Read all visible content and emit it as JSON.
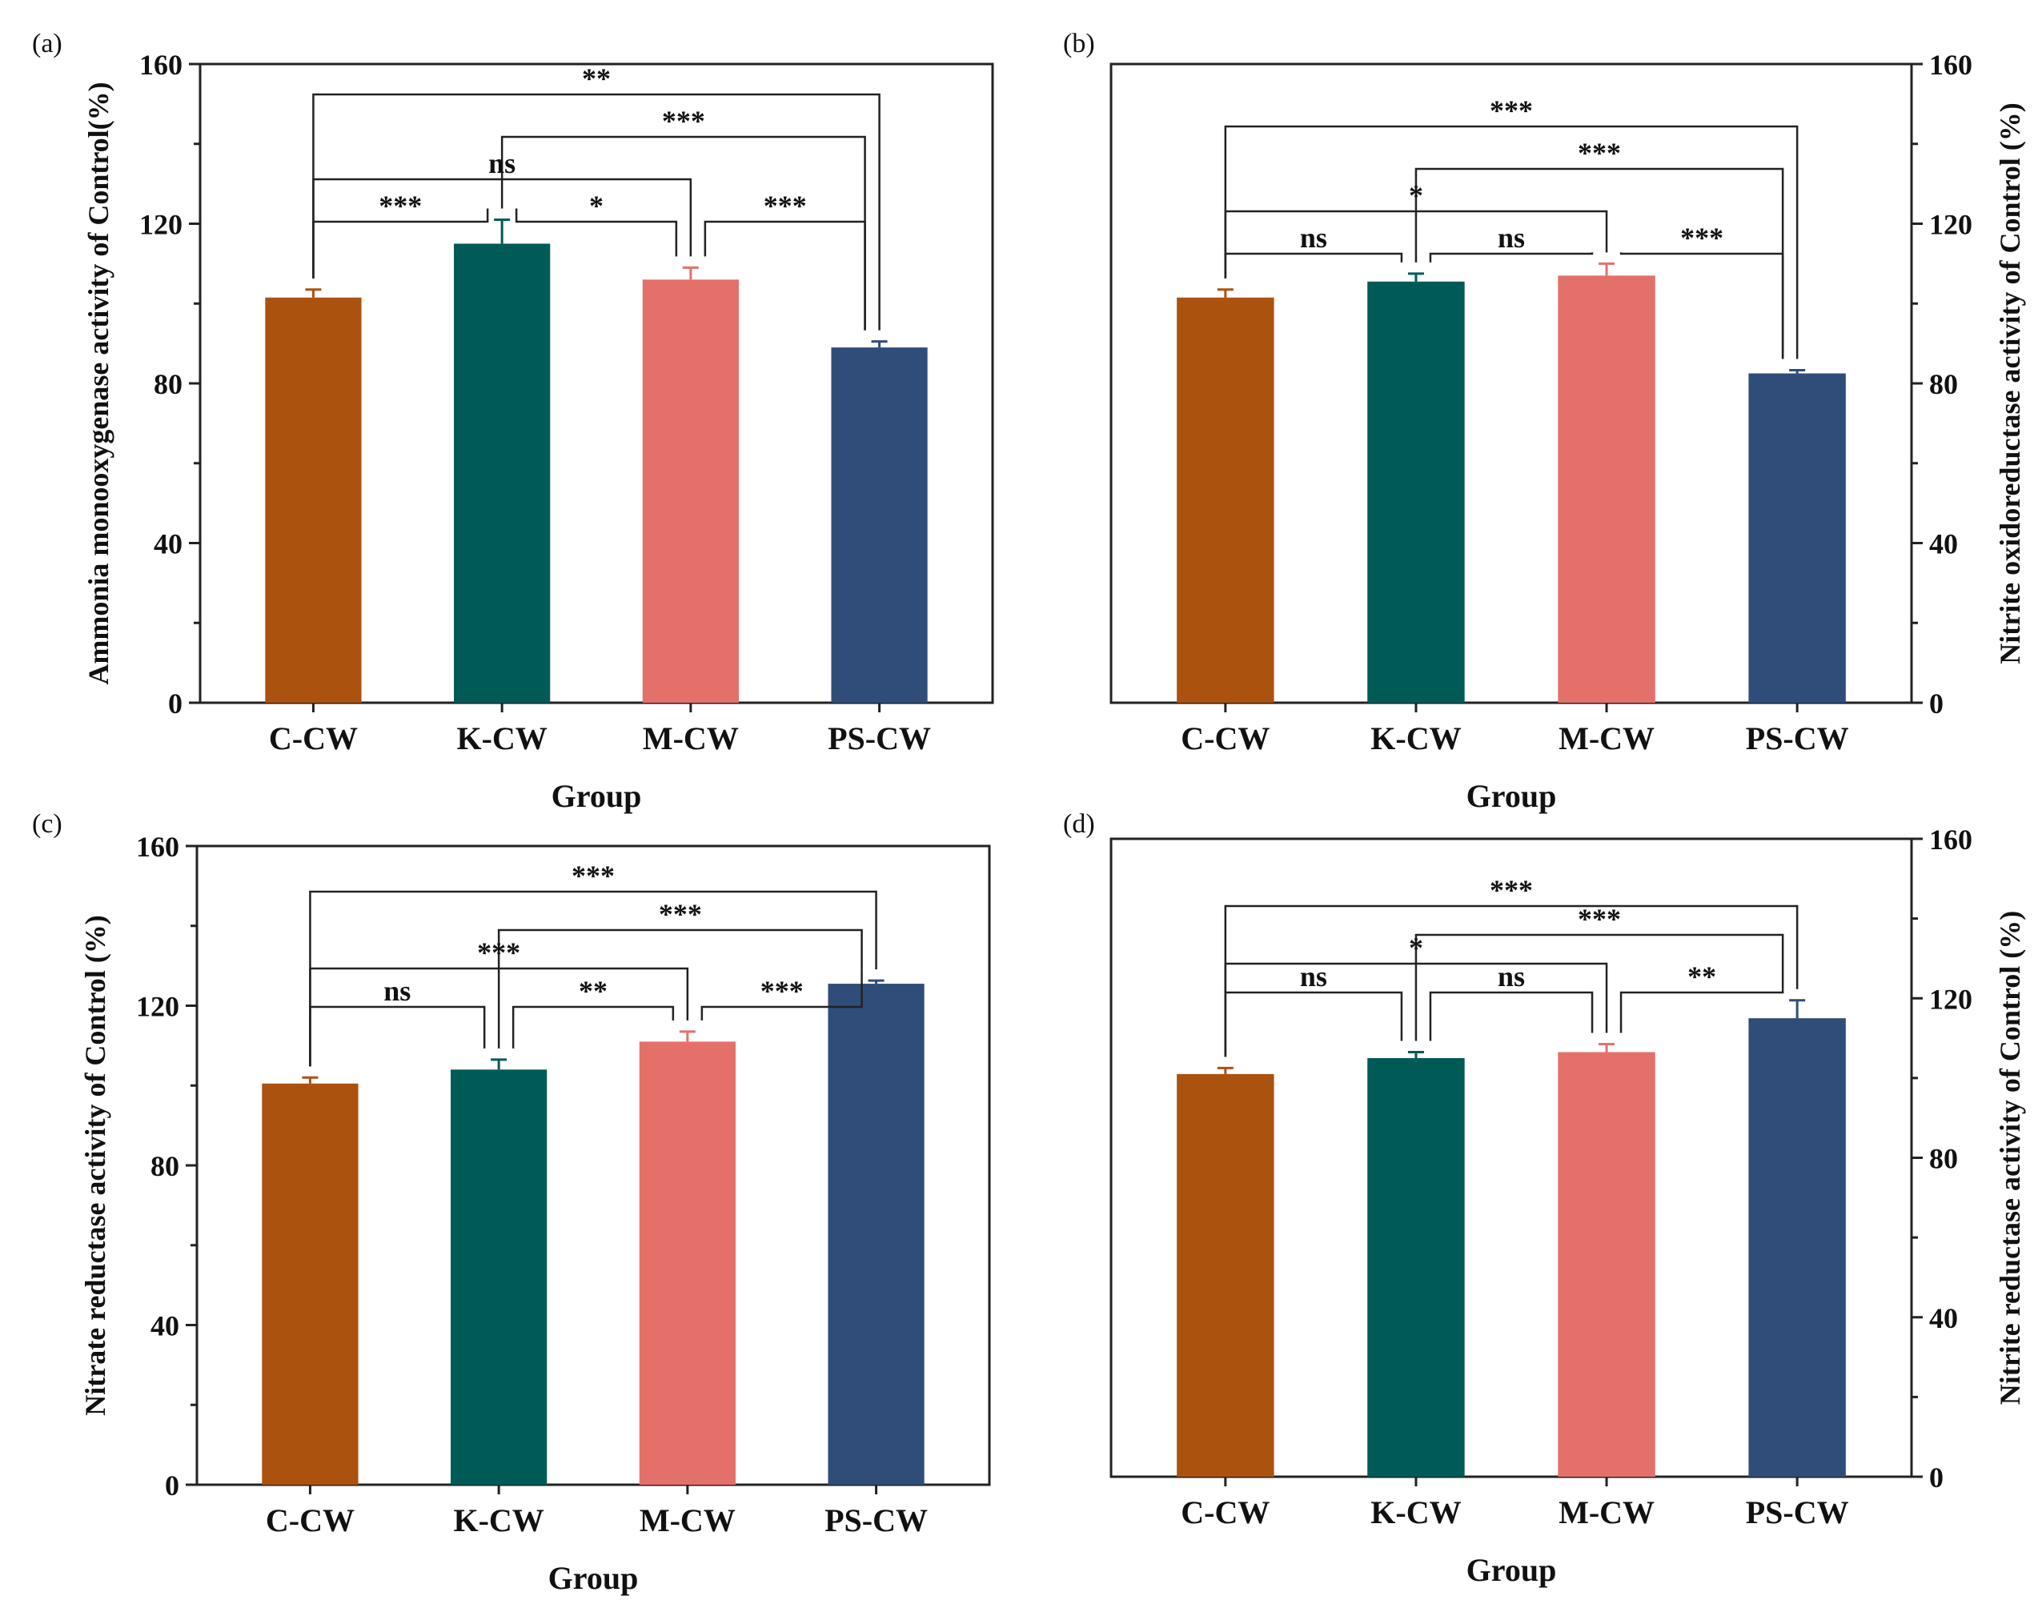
{
  "figure": {
    "chart_data": [
      {
        "type": "bar",
        "panel_label": "(a)",
        "categories": [
          "C-CW",
          "K-CW",
          "M-CW",
          "PS-CW"
        ],
        "values": [
          101.5,
          115,
          106,
          89
        ],
        "errors": [
          2,
          6,
          3,
          1.5
        ],
        "colors": [
          "#AC520F",
          "#005A56",
          "#E4706A",
          "#2F4D78"
        ],
        "xlabel": "Group",
        "ylabel": "Ammonia monooxygenase activity of Control(%)",
        "ylim": [
          0,
          160
        ],
        "yticks": [
          "0",
          "40",
          "80",
          "120",
          "160"
        ],
        "yaxis_side": "left",
        "grid": false,
        "comparisons": [
          {
            "from": 0,
            "to": 3,
            "label": "**"
          },
          {
            "from": 1,
            "to": 3,
            "label": "***"
          },
          {
            "from": 0,
            "to": 2,
            "label": "ns"
          },
          {
            "from": 0,
            "to": 1,
            "label": "***"
          },
          {
            "from": 1,
            "to": 2,
            "label": "*"
          },
          {
            "from": 2,
            "to": 3,
            "label": "***"
          }
        ]
      },
      {
        "type": "bar",
        "panel_label": "(b)",
        "categories": [
          "C-CW",
          "K-CW",
          "M-CW",
          "PS-CW"
        ],
        "values": [
          101.5,
          105.5,
          107,
          82.5
        ],
        "errors": [
          2,
          2,
          3,
          0.8
        ],
        "colors": [
          "#AC520F",
          "#005A56",
          "#E4706A",
          "#2F4D78"
        ],
        "xlabel": "Group",
        "ylabel": "Nitrite oxidoreductase activity of Control (%)",
        "ylim": [
          0,
          160
        ],
        "yticks": [
          "0",
          "40",
          "80",
          "120",
          "160"
        ],
        "yaxis_side": "right",
        "grid": false,
        "comparisons": [
          {
            "from": 0,
            "to": 3,
            "label": "***"
          },
          {
            "from": 1,
            "to": 3,
            "label": "***"
          },
          {
            "from": 0,
            "to": 2,
            "label": "*"
          },
          {
            "from": 0,
            "to": 1,
            "label": "ns"
          },
          {
            "from": 1,
            "to": 2,
            "label": "ns"
          },
          {
            "from": 2,
            "to": 3,
            "label": "***"
          }
        ]
      },
      {
        "type": "bar",
        "panel_label": "(c)",
        "categories": [
          "C-CW",
          "K-CW",
          "M-CW",
          "PS-CW"
        ],
        "values": [
          100.5,
          104,
          111,
          125.5
        ],
        "errors": [
          1.5,
          2.5,
          2.5,
          0.8
        ],
        "colors": [
          "#AC520F",
          "#005A56",
          "#E4706A",
          "#2F4D78"
        ],
        "xlabel": "Group",
        "ylabel": "Nitrate reductase activity of Control (%)",
        "ylim": [
          0,
          160
        ],
        "yticks": [
          "0",
          "40",
          "80",
          "120",
          "160"
        ],
        "yaxis_side": "left",
        "grid": false,
        "comparisons": [
          {
            "from": 0,
            "to": 3,
            "label": "***"
          },
          {
            "from": 1,
            "to": 3,
            "label": "***"
          },
          {
            "from": 0,
            "to": 2,
            "label": "***"
          },
          {
            "from": 0,
            "to": 1,
            "label": "ns"
          },
          {
            "from": 1,
            "to": 2,
            "label": "**"
          },
          {
            "from": 2,
            "to": 3,
            "label": "***"
          }
        ]
      },
      {
        "type": "bar",
        "panel_label": "(d)",
        "categories": [
          "C-CW",
          "K-CW",
          "M-CW",
          "PS-CW"
        ],
        "values": [
          101,
          105,
          106.5,
          115
        ],
        "errors": [
          1.5,
          1.5,
          2,
          4.5
        ],
        "colors": [
          "#AC520F",
          "#005A56",
          "#E4706A",
          "#2F4D78"
        ],
        "xlabel": "Group",
        "ylabel": "Nitrite reductase activity of Control (%)",
        "ylim": [
          0,
          160
        ],
        "yticks": [
          "0",
          "40",
          "80",
          "120",
          "160"
        ],
        "yaxis_side": "right",
        "grid": false,
        "comparisons": [
          {
            "from": 0,
            "to": 3,
            "label": "***"
          },
          {
            "from": 1,
            "to": 3,
            "label": "***"
          },
          {
            "from": 0,
            "to": 2,
            "label": "*"
          },
          {
            "from": 0,
            "to": 1,
            "label": "ns"
          },
          {
            "from": 1,
            "to": 2,
            "label": "ns"
          },
          {
            "from": 2,
            "to": 3,
            "label": "**"
          }
        ]
      }
    ]
  }
}
